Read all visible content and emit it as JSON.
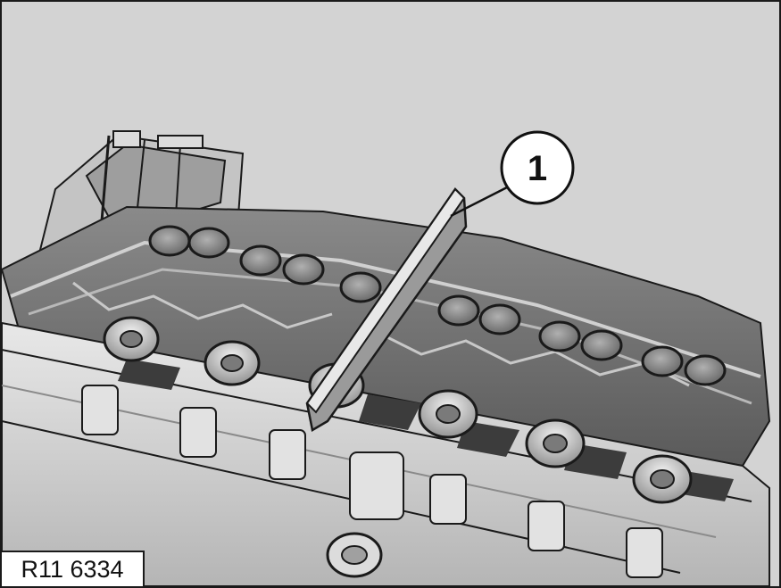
{
  "figure": {
    "callout_label": "1",
    "reference_code": "R11 6334"
  },
  "colors": {
    "background": "#d3d3d3",
    "metal_light": "#e6e6e6",
    "metal_mid": "#a9a9a9",
    "metal_dark": "#3c3c3c",
    "port_fill": "#8c8c8c",
    "outline": "#1a1a1a"
  },
  "icons": [
    "cylinder-head-illustration",
    "straight-edge-tool",
    "callout-circle"
  ]
}
